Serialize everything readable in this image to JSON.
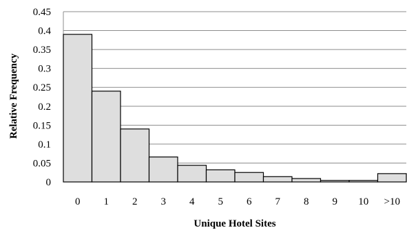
{
  "chart_data": {
    "type": "bar",
    "title": "",
    "xlabel": "Unique Hotel Sites",
    "ylabel": "Relative Frequency",
    "categories": [
      "0",
      "1",
      "2",
      "3",
      "4",
      "5",
      "6",
      "7",
      "8",
      "9",
      "10",
      ">10"
    ],
    "values": [
      0.39,
      0.24,
      0.14,
      0.066,
      0.044,
      0.032,
      0.025,
      0.014,
      0.009,
      0.004,
      0.004,
      0.022
    ],
    "ylim": [
      0,
      0.45
    ],
    "yticks": [
      "0",
      "0.05",
      "0.1",
      "0.15",
      "0.2",
      "0.25",
      "0.3",
      "0.35",
      "0.4",
      "0.45"
    ],
    "ytick_values": [
      0,
      0.05,
      0.1,
      0.15,
      0.2,
      0.25,
      0.3,
      0.35,
      0.4,
      0.45
    ],
    "grid": true,
    "colors": {
      "bar_fill": "#dedede",
      "bar_stroke": "#000000",
      "grid": "#8c8c8c"
    }
  }
}
